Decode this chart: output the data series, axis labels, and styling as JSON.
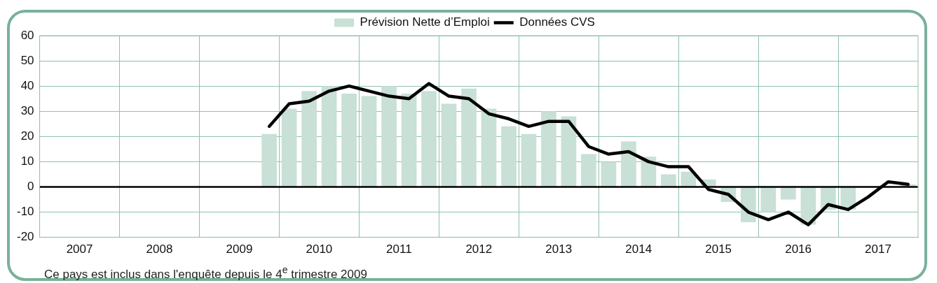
{
  "chart_data": {
    "type": "bar",
    "x": [
      2009.875,
      2010.125,
      2010.375,
      2010.625,
      2010.875,
      2011.125,
      2011.375,
      2011.625,
      2011.875,
      2012.125,
      2012.375,
      2012.625,
      2012.875,
      2013.125,
      2013.375,
      2013.625,
      2013.875,
      2014.125,
      2014.375,
      2014.625,
      2014.875,
      2015.125,
      2015.375,
      2015.625,
      2015.875,
      2016.125,
      2016.375,
      2016.625,
      2016.875,
      2017.125,
      2017.375,
      2017.625,
      2017.875
    ],
    "series": [
      {
        "name": "Prévision Nette d’Emploi",
        "color": "#c8e0d6",
        "values": [
          21,
          31,
          38,
          40,
          37,
          36,
          40,
          37,
          38,
          33,
          39,
          31,
          24,
          21,
          30,
          28,
          13,
          10,
          18,
          12,
          5,
          6,
          3,
          -6,
          -14,
          -10,
          -5,
          -15,
          -9,
          -9,
          0,
          0,
          1
        ]
      },
      {
        "name": "Données CVS",
        "type": "line",
        "color": "#000000",
        "values": [
          24,
          33,
          34,
          38,
          40,
          38,
          36,
          35,
          41,
          36,
          35,
          29,
          27,
          24,
          26,
          26,
          16,
          13,
          14,
          10,
          8,
          8,
          -1,
          -3,
          -10,
          -13,
          -10,
          -15,
          -7,
          -9,
          -4,
          2,
          1
        ]
      }
    ],
    "xlim": [
      2007,
      2018
    ],
    "xticks": [
      {
        "value": 2007.5,
        "label": "2007"
      },
      {
        "value": 2008,
        "label": null
      },
      {
        "value": 2008.5,
        "label": "2008"
      },
      {
        "value": 2009,
        "label": null
      },
      {
        "value": 2009.5,
        "label": "2009"
      },
      {
        "value": 2010,
        "label": null
      },
      {
        "value": 2010.5,
        "label": "2010"
      },
      {
        "value": 2011,
        "label": null
      },
      {
        "value": 2011.5,
        "label": "2011"
      },
      {
        "value": 2012,
        "label": null
      },
      {
        "value": 2012.5,
        "label": "2012"
      },
      {
        "value": 2013,
        "label": null
      },
      {
        "value": 2013.5,
        "label": "2013"
      },
      {
        "value": 2014,
        "label": null
      },
      {
        "value": 2014.5,
        "label": "2014"
      },
      {
        "value": 2015,
        "label": null
      },
      {
        "value": 2015.5,
        "label": "2015"
      },
      {
        "value": 2016,
        "label": null
      },
      {
        "value": 2016.5,
        "label": "2016"
      },
      {
        "value": 2017,
        "label": null
      },
      {
        "value": 2017.5,
        "label": "2017"
      }
    ],
    "ylim": [
      -20,
      60
    ],
    "yticks": [
      -20,
      -10,
      0,
      10,
      20,
      30,
      40,
      50,
      60
    ],
    "grid": true,
    "legend": "top",
    "marker": "none",
    "line_style": "solid",
    "ref_lines": [
      {
        "axis": "y",
        "value": 0,
        "color": "#000000"
      }
    ],
    "annotations": [
      "Ce pays est inclus dans l'enquête depuis le 4$^{e}$ trimestre 2009"
    ]
  }
}
